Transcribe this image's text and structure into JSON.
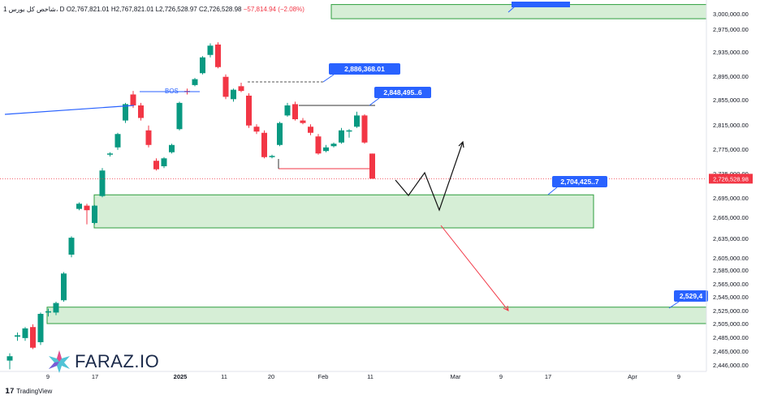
{
  "header": {
    "symbol": "1 شاخص کل بورس، D",
    "o": "O2,767,821.01",
    "h": "H2,767,821.01",
    "l": "L2,726,528.97",
    "c": "C2,726,528.98",
    "change": "−57,814.94 (−2.08%)"
  },
  "watermark": {
    "brand": "FARAZ.IO",
    "icon": "faraz-star-logo-icon"
  },
  "footer": {
    "brand": "TradingView",
    "icon": "tradingview-logo-icon"
  },
  "colors": {
    "up": "#089981",
    "down": "#f23645",
    "zone_fill": "#d6eed6",
    "zone_border": "#2e9e3e",
    "bos_line": "#2962ff",
    "label_bg": "#2962ff",
    "last_price_bg": "#f23645"
  },
  "chart_data": {
    "type": "candlestick",
    "x_tick_labels": [
      "9",
      "17",
      "2025",
      "11",
      "20",
      "Feb",
      "11",
      "Mar",
      "9",
      "17",
      "Apr",
      "9"
    ],
    "y_tick_labels": [
      "3,000,000.00",
      "2,975,000.00",
      "2,935,000.00",
      "2,895,000.00",
      "2,855,000.00",
      "2,815,000.00",
      "2,775,000.00",
      "2,735,000.00",
      "2,695,000.00",
      "2,665,000.00",
      "2,635,000.00",
      "2,605,000.00",
      "2,585,000.00",
      "2,565,000.00",
      "2,545,000.00",
      "2,525,000.00",
      "2,505,000.00",
      "2,485,000.00",
      "2,465,000.00",
      "2,446,000.00"
    ],
    "y_range": [
      2440000,
      3015000
    ],
    "last_price": "2,726,528.98",
    "candles": [
      {
        "o": 2452000,
        "h": 2462000,
        "l": 2440000,
        "c": 2458000
      },
      {
        "o": 2486000,
        "h": 2492000,
        "l": 2480000,
        "c": 2488000
      },
      {
        "o": 2484000,
        "h": 2500000,
        "l": 2480000,
        "c": 2498000
      },
      {
        "o": 2500000,
        "h": 2504000,
        "l": 2468000,
        "c": 2470000
      },
      {
        "o": 2478000,
        "h": 2522000,
        "l": 2474000,
        "c": 2520000
      },
      {
        "o": 2522000,
        "h": 2528000,
        "l": 2516000,
        "c": 2524000
      },
      {
        "o": 2522000,
        "h": 2538000,
        "l": 2518000,
        "c": 2536000
      },
      {
        "o": 2540000,
        "h": 2582000,
        "l": 2538000,
        "c": 2580000
      },
      {
        "o": 2610000,
        "h": 2638000,
        "l": 2606000,
        "c": 2636000
      },
      {
        "o": 2678000,
        "h": 2688000,
        "l": 2676000,
        "c": 2686000
      },
      {
        "o": 2683000,
        "h": 2686000,
        "l": 2655000,
        "c": 2676000
      },
      {
        "o": 2657000,
        "h": 2684000,
        "l": 2655000,
        "c": 2683000
      },
      {
        "o": 2698000,
        "h": 2744000,
        "l": 2696000,
        "c": 2740000
      },
      {
        "o": 2766000,
        "h": 2770000,
        "l": 2763000,
        "c": 2768000
      },
      {
        "o": 2778000,
        "h": 2802000,
        "l": 2774000,
        "c": 2800000
      },
      {
        "o": 2822000,
        "h": 2850000,
        "l": 2818000,
        "c": 2848000
      },
      {
        "o": 2864000,
        "h": 2870000,
        "l": 2842000,
        "c": 2846000
      },
      {
        "o": 2846000,
        "h": 2850000,
        "l": 2822000,
        "c": 2826000
      },
      {
        "o": 2806000,
        "h": 2814000,
        "l": 2778000,
        "c": 2782000
      },
      {
        "o": 2756000,
        "h": 2760000,
        "l": 2740000,
        "c": 2742000
      },
      {
        "o": 2747000,
        "h": 2762000,
        "l": 2744000,
        "c": 2760000
      },
      {
        "o": 2770000,
        "h": 2784000,
        "l": 2768000,
        "c": 2782000
      },
      {
        "o": 2808000,
        "h": 2852000,
        "l": 2806000,
        "c": 2850000
      },
      {
        "o": 2870000,
        "h": 2874000,
        "l": 2864000,
        "c": 2868000
      },
      {
        "o": 2880000,
        "h": 2892000,
        "l": 2878000,
        "c": 2890000
      },
      {
        "o": 2900000,
        "h": 2928000,
        "l": 2898000,
        "c": 2926000
      },
      {
        "o": 2930000,
        "h": 2950000,
        "l": 2926000,
        "c": 2946000
      },
      {
        "o": 2948000,
        "h": 2952000,
        "l": 2908000,
        "c": 2910000
      },
      {
        "o": 2894000,
        "h": 2898000,
        "l": 2856000,
        "c": 2860000
      },
      {
        "o": 2856000,
        "h": 2874000,
        "l": 2852000,
        "c": 2872000
      },
      {
        "o": 2878000,
        "h": 2884000,
        "l": 2868000,
        "c": 2870000
      },
      {
        "o": 2862000,
        "h": 2866000,
        "l": 2810000,
        "c": 2814000
      },
      {
        "o": 2812000,
        "h": 2816000,
        "l": 2800000,
        "c": 2804000
      },
      {
        "o": 2802000,
        "h": 2806000,
        "l": 2760000,
        "c": 2762000
      },
      {
        "o": 2763000,
        "h": 2766000,
        "l": 2760000,
        "c": 2764000
      },
      {
        "o": 2782000,
        "h": 2820000,
        "l": 2780000,
        "c": 2818000
      },
      {
        "o": 2830000,
        "h": 2850000,
        "l": 2828000,
        "c": 2846000
      },
      {
        "o": 2848000,
        "h": 2852000,
        "l": 2822000,
        "c": 2824000
      },
      {
        "o": 2822000,
        "h": 2826000,
        "l": 2816000,
        "c": 2818000
      },
      {
        "o": 2812000,
        "h": 2816000,
        "l": 2798000,
        "c": 2802000
      },
      {
        "o": 2796000,
        "h": 2800000,
        "l": 2766000,
        "c": 2768000
      },
      {
        "o": 2772000,
        "h": 2782000,
        "l": 2770000,
        "c": 2778000
      },
      {
        "o": 2780000,
        "h": 2786000,
        "l": 2778000,
        "c": 2784000
      },
      {
        "o": 2786000,
        "h": 2810000,
        "l": 2784000,
        "c": 2806000
      },
      {
        "o": 2804000,
        "h": 2808000,
        "l": 2794000,
        "c": 2806000
      },
      {
        "o": 2812000,
        "h": 2836000,
        "l": 2810000,
        "c": 2830000
      },
      {
        "o": 2830000,
        "h": 2832000,
        "l": 2784000,
        "c": 2786000
      },
      {
        "o": 2767821,
        "h": 2767821,
        "l": 2726529,
        "c": 2726529
      }
    ],
    "annotations": {
      "bos_label": "BOS",
      "callouts": [
        {
          "text": "2,886,368.01",
          "price": 2886368.01
        },
        {
          "text": "2,848,495..6",
          "price": 2848495
        },
        {
          "text": "2,704,425..7",
          "price": 2704425
        },
        {
          "text": "2,529,4",
          "price": 2529400
        }
      ],
      "zones": [
        {
          "name": "top-supply-zone",
          "top": 3015000,
          "bottom": 2992000
        },
        {
          "name": "mid-demand-zone",
          "top": 2700000,
          "bottom": 2650000
        },
        {
          "name": "low-demand-zone",
          "top": 2530000,
          "bottom": 2505000
        }
      ]
    }
  }
}
